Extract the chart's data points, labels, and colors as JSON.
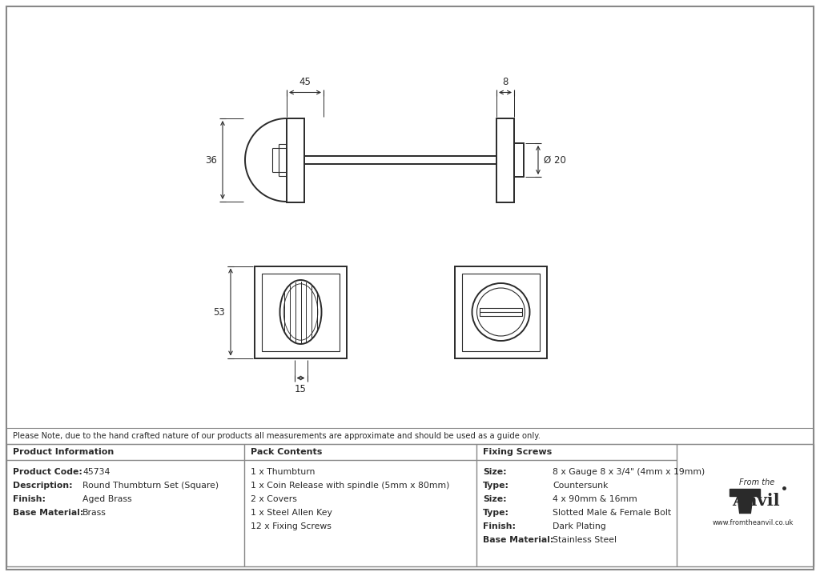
{
  "bg_color": "#ffffff",
  "panel_bg": "#f0f0f0",
  "line_color": "#2a2a2a",
  "border_color": "#555555",
  "title_note": "Please Note, due to the hand crafted nature of our products all measurements are approximate and should be used as a guide only.",
  "product_info_keys": [
    "Product Code:",
    "Description:",
    "Finish:",
    "Base Material:"
  ],
  "product_info_vals": [
    "45734",
    "Round Thumbturn Set (Square)",
    "Aged Brass",
    "Brass"
  ],
  "pack_contents": [
    "1 x Thumbturn",
    "1 x Coin Release with spindle (5mm x 80mm)",
    "2 x Covers",
    "1 x Steel Allen Key",
    "12 x Fixing Screws"
  ],
  "fixing_screws_keys": [
    "Size:",
    "Type:",
    "Size:",
    "Type:",
    "Finish:",
    "Base Material:"
  ],
  "fixing_screws_vals": [
    "8 x Gauge 8 x 3/4\" (4mm x 19mm)",
    "Countersunk",
    "4 x 90mm & 16mm",
    "Slotted Male & Female Bolt",
    "Dark Plating",
    "Stainless Steel"
  ],
  "dim_45": "45",
  "dim_8": "8",
  "dim_36": "36",
  "dim_20": "Ø 20",
  "dim_53": "53",
  "dim_15": "15"
}
